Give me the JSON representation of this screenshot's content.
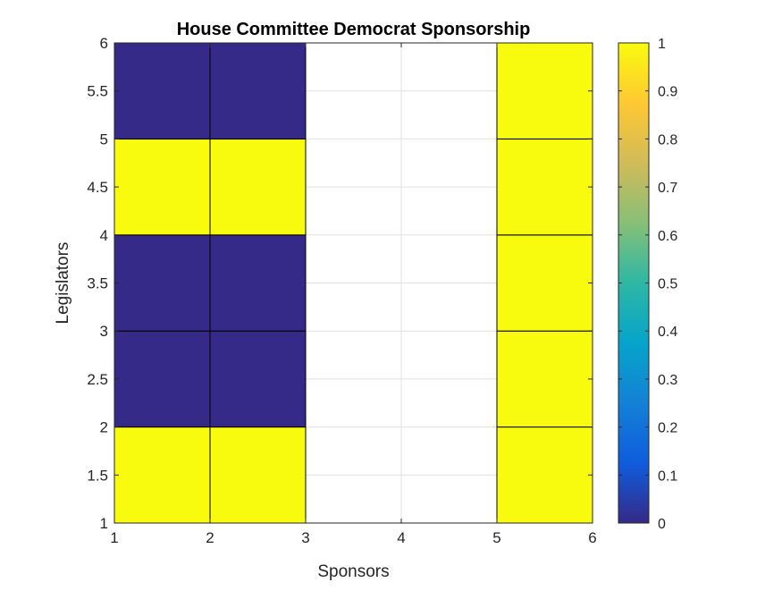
{
  "chart_data": {
    "type": "heatmap",
    "title": "House Committee Democrat Sponsorship",
    "xlabel": "Sponsors",
    "ylabel": "Legislators",
    "xlim": [
      1,
      6
    ],
    "ylim": [
      1,
      6
    ],
    "xticks": [
      "1",
      "2",
      "3",
      "4",
      "5",
      "6"
    ],
    "yticks": [
      "1",
      "1.5",
      "2",
      "2.5",
      "3",
      "3.5",
      "4",
      "4.5",
      "5",
      "5.5",
      "6"
    ],
    "grid": true,
    "cells": [
      {
        "x": [
          1,
          2
        ],
        "y": [
          1,
          2
        ],
        "value": 1
      },
      {
        "x": [
          2,
          3
        ],
        "y": [
          1,
          2
        ],
        "value": 1
      },
      {
        "x": [
          1,
          2
        ],
        "y": [
          2,
          3
        ],
        "value": 0
      },
      {
        "x": [
          2,
          3
        ],
        "y": [
          2,
          3
        ],
        "value": 0
      },
      {
        "x": [
          1,
          2
        ],
        "y": [
          3,
          4
        ],
        "value": 0
      },
      {
        "x": [
          2,
          3
        ],
        "y": [
          3,
          4
        ],
        "value": 0
      },
      {
        "x": [
          1,
          2
        ],
        "y": [
          4,
          5
        ],
        "value": 1
      },
      {
        "x": [
          2,
          3
        ],
        "y": [
          4,
          5
        ],
        "value": 1
      },
      {
        "x": [
          1,
          2
        ],
        "y": [
          5,
          6
        ],
        "value": 0
      },
      {
        "x": [
          2,
          3
        ],
        "y": [
          5,
          6
        ],
        "value": 0
      },
      {
        "x": [
          5,
          6
        ],
        "y": [
          1,
          2
        ],
        "value": 1
      },
      {
        "x": [
          5,
          6
        ],
        "y": [
          2,
          3
        ],
        "value": 1
      },
      {
        "x": [
          5,
          6
        ],
        "y": [
          3,
          4
        ],
        "value": 1
      },
      {
        "x": [
          5,
          6
        ],
        "y": [
          4,
          5
        ],
        "value": 1
      },
      {
        "x": [
          5,
          6
        ],
        "y": [
          5,
          6
        ],
        "value": 1
      }
    ],
    "colorbar": {
      "clim": [
        0,
        1
      ],
      "ticks": [
        "0",
        "0.1",
        "0.2",
        "0.3",
        "0.4",
        "0.5",
        "0.6",
        "0.7",
        "0.8",
        "0.9",
        "1"
      ],
      "colormap": [
        "#352a87",
        "#0f5cdd",
        "#1481d6",
        "#06a4ca",
        "#2eb7a4",
        "#87bf77",
        "#d1bb59",
        "#fec832",
        "#f9fb0e"
      ]
    }
  }
}
